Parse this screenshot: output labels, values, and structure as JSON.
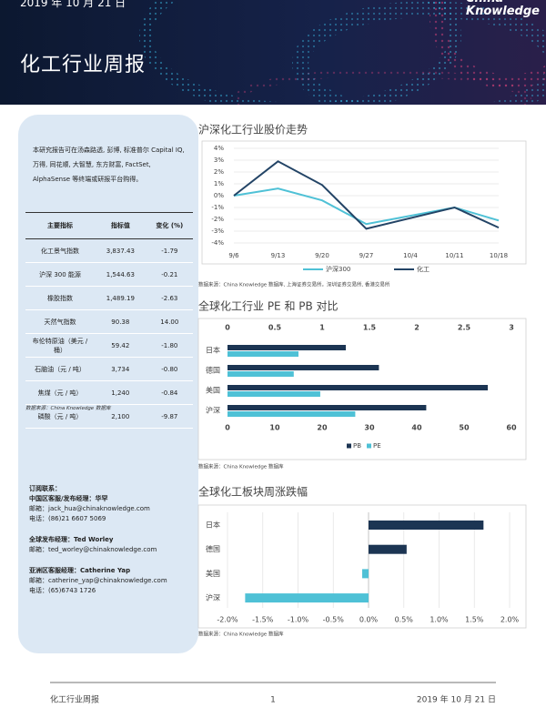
{
  "header": {
    "date": "2019 年 10 月 21 日",
    "logo": "China Knowledge",
    "title": "化工行业周报"
  },
  "sidebar": {
    "intro": "本研究报告可在汤森路透, 彭博, 标准普尔 Capital IQ, 万得, 同花顺, 大智慧, 东方财富, FactSet, AlphaSense 等终端或研报平台购得。",
    "table": {
      "header": [
        "主要指标",
        "指标值",
        "变化 (%)"
      ],
      "rows": [
        [
          "化工景气指数",
          "3,837.43",
          "-1.79"
        ],
        [
          "沪深 300 能源",
          "1,544.63",
          "-0.21"
        ],
        [
          "橡胶指数",
          "1,489.19",
          "-2.63"
        ],
        [
          "天然气指数",
          "90.38",
          "14.00"
        ],
        [
          "布伦特原油（美元 / 桶）",
          "59.42",
          "-1.80"
        ],
        [
          "石脑油（元 / 吨）",
          "3,734",
          "-0.80"
        ],
        [
          "焦煤（元 / 吨）",
          "1,240",
          "-0.84"
        ],
        [
          "磷酸（元 / 吨）",
          "2,100",
          "-9.87"
        ]
      ],
      "source": "数据来源：China Knowledge 数据库"
    },
    "contacts": {
      "heading": "订阅联系：",
      "groups": [
        {
          "title": "中国区客服/发布经理：华罕",
          "lines": [
            "邮箱：jack_hua@chinaknowledge.com",
            "电话：(86)21 6607 5069"
          ]
        },
        {
          "title": "全球发布经理：Ted Worley",
          "lines": [
            "邮箱：ted_worley@chinaknowledge.com"
          ]
        },
        {
          "title": "亚洲区客服经理：Catherine Yap",
          "lines": [
            "邮箱：catherine_yap@chinaknowledge.com",
            "电话：(65)6743 1726"
          ]
        }
      ]
    }
  },
  "chart_data": [
    {
      "type": "line",
      "title": "沪深化工行业股价走势",
      "categories": [
        "9/6",
        "9/13",
        "9/20",
        "9/27",
        "10/4",
        "10/11",
        "10/18"
      ],
      "series": [
        {
          "name": "沪深300",
          "color": "#4fc1d6",
          "values": [
            0,
            0.6,
            -0.4,
            -2.4,
            -1.7,
            -1.0,
            -2.1
          ]
        },
        {
          "name": "化工",
          "color": "#234466",
          "values": [
            0,
            2.9,
            0.9,
            -2.8,
            -1.9,
            -1.0,
            -2.7
          ]
        }
      ],
      "ylim": [
        -4,
        4
      ],
      "yticks": [
        {
          "value": 4,
          "label": "4%"
        },
        {
          "value": 3,
          "label": "3%"
        },
        {
          "value": 2,
          "label": "2%"
        },
        {
          "value": 1,
          "label": "1%"
        },
        {
          "value": 0,
          "label": "0%"
        },
        {
          "value": -1,
          "label": "-1%"
        },
        {
          "value": -2,
          "label": "-2%"
        },
        {
          "value": -3,
          "label": "-3%"
        },
        {
          "value": -4,
          "label": "-4%"
        }
      ],
      "grid": true,
      "legend": "bottom",
      "source": "数据来源：China Knowledge 数据库, 上海证券交易所，深圳证券交易所, 香港交易所"
    },
    {
      "type": "hbar",
      "title": "全球化工行业 PE 和 PB 对比",
      "categories": [
        "日本",
        "德国",
        "美国",
        "沪深"
      ],
      "series": [
        {
          "name": "PB",
          "color": "#1c3553",
          "values": [
            1.25,
            1.6,
            2.75,
            2.1
          ],
          "axis": "x2"
        },
        {
          "name": "PE",
          "color": "#4fc1d6",
          "values": [
            15,
            14,
            19.6,
            27
          ]
        }
      ],
      "xlim": [
        0,
        60
      ],
      "xticks": [
        0,
        10,
        20,
        30,
        40,
        50,
        60
      ],
      "x2lim": [
        0,
        3
      ],
      "x2ticks": [
        0,
        0.5,
        1,
        1.5,
        2,
        2.5,
        3
      ],
      "legend": "bottom",
      "source": "数据来源：China Knowledge 数据库"
    },
    {
      "type": "hbar",
      "title": "全球化工板块周涨跌幅",
      "categories": [
        "日本",
        "德国",
        "美国",
        "沪深"
      ],
      "values": [
        1.63,
        0.54,
        -0.09,
        -1.75
      ],
      "colors": [
        "#1c3553",
        "#1c3553",
        "#4fc1d6",
        "#4fc1d6"
      ],
      "xlim": [
        -2,
        2
      ],
      "xticks": [
        {
          "value": -2,
          "label": "-2.0%"
        },
        {
          "value": -1.5,
          "label": "-1.5%"
        },
        {
          "value": -1,
          "label": "-1.0%"
        },
        {
          "value": -0.5,
          "label": "-0.5%"
        },
        {
          "value": 0,
          "label": "0.0%"
        },
        {
          "value": 0.5,
          "label": "0.5%"
        },
        {
          "value": 1,
          "label": "1.0%"
        },
        {
          "value": 1.5,
          "label": "1.5%"
        },
        {
          "value": 2,
          "label": "2.0%"
        }
      ],
      "grid": true,
      "source": "数据来源：China Knowledge 数据库"
    }
  ],
  "footer": {
    "left": "化工行业周报",
    "page": "1",
    "right": "2019 年 10 月 21 日"
  }
}
